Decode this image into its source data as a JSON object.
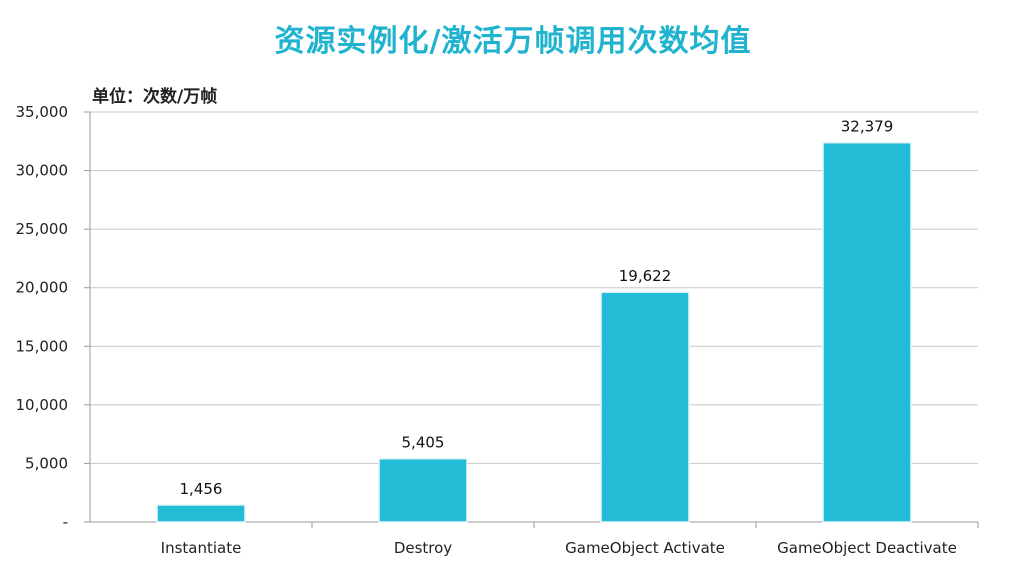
{
  "chart_data": {
    "type": "bar",
    "title": "资源实例化/激活万帧调用次数均值",
    "unit_label": "单位：次数/万帧",
    "categories": [
      "Instantiate",
      "Destroy",
      "GameObject Activate",
      "GameObject Deactivate"
    ],
    "values": [
      1456,
      5405,
      19622,
      32379
    ],
    "value_labels": [
      "1,456",
      "5,405",
      "19,622",
      "32,379"
    ],
    "ylim": [
      0,
      35000
    ],
    "y_ticks": [
      0,
      5000,
      10000,
      15000,
      20000,
      25000,
      30000,
      35000
    ],
    "y_tick_labels": [
      "-",
      "5,000",
      "10,000",
      "15,000",
      "20,000",
      "25,000",
      "30,000",
      "35,000"
    ],
    "grid": true,
    "bar_color": "#22bcd6",
    "title_color": "#1fb3cf"
  }
}
